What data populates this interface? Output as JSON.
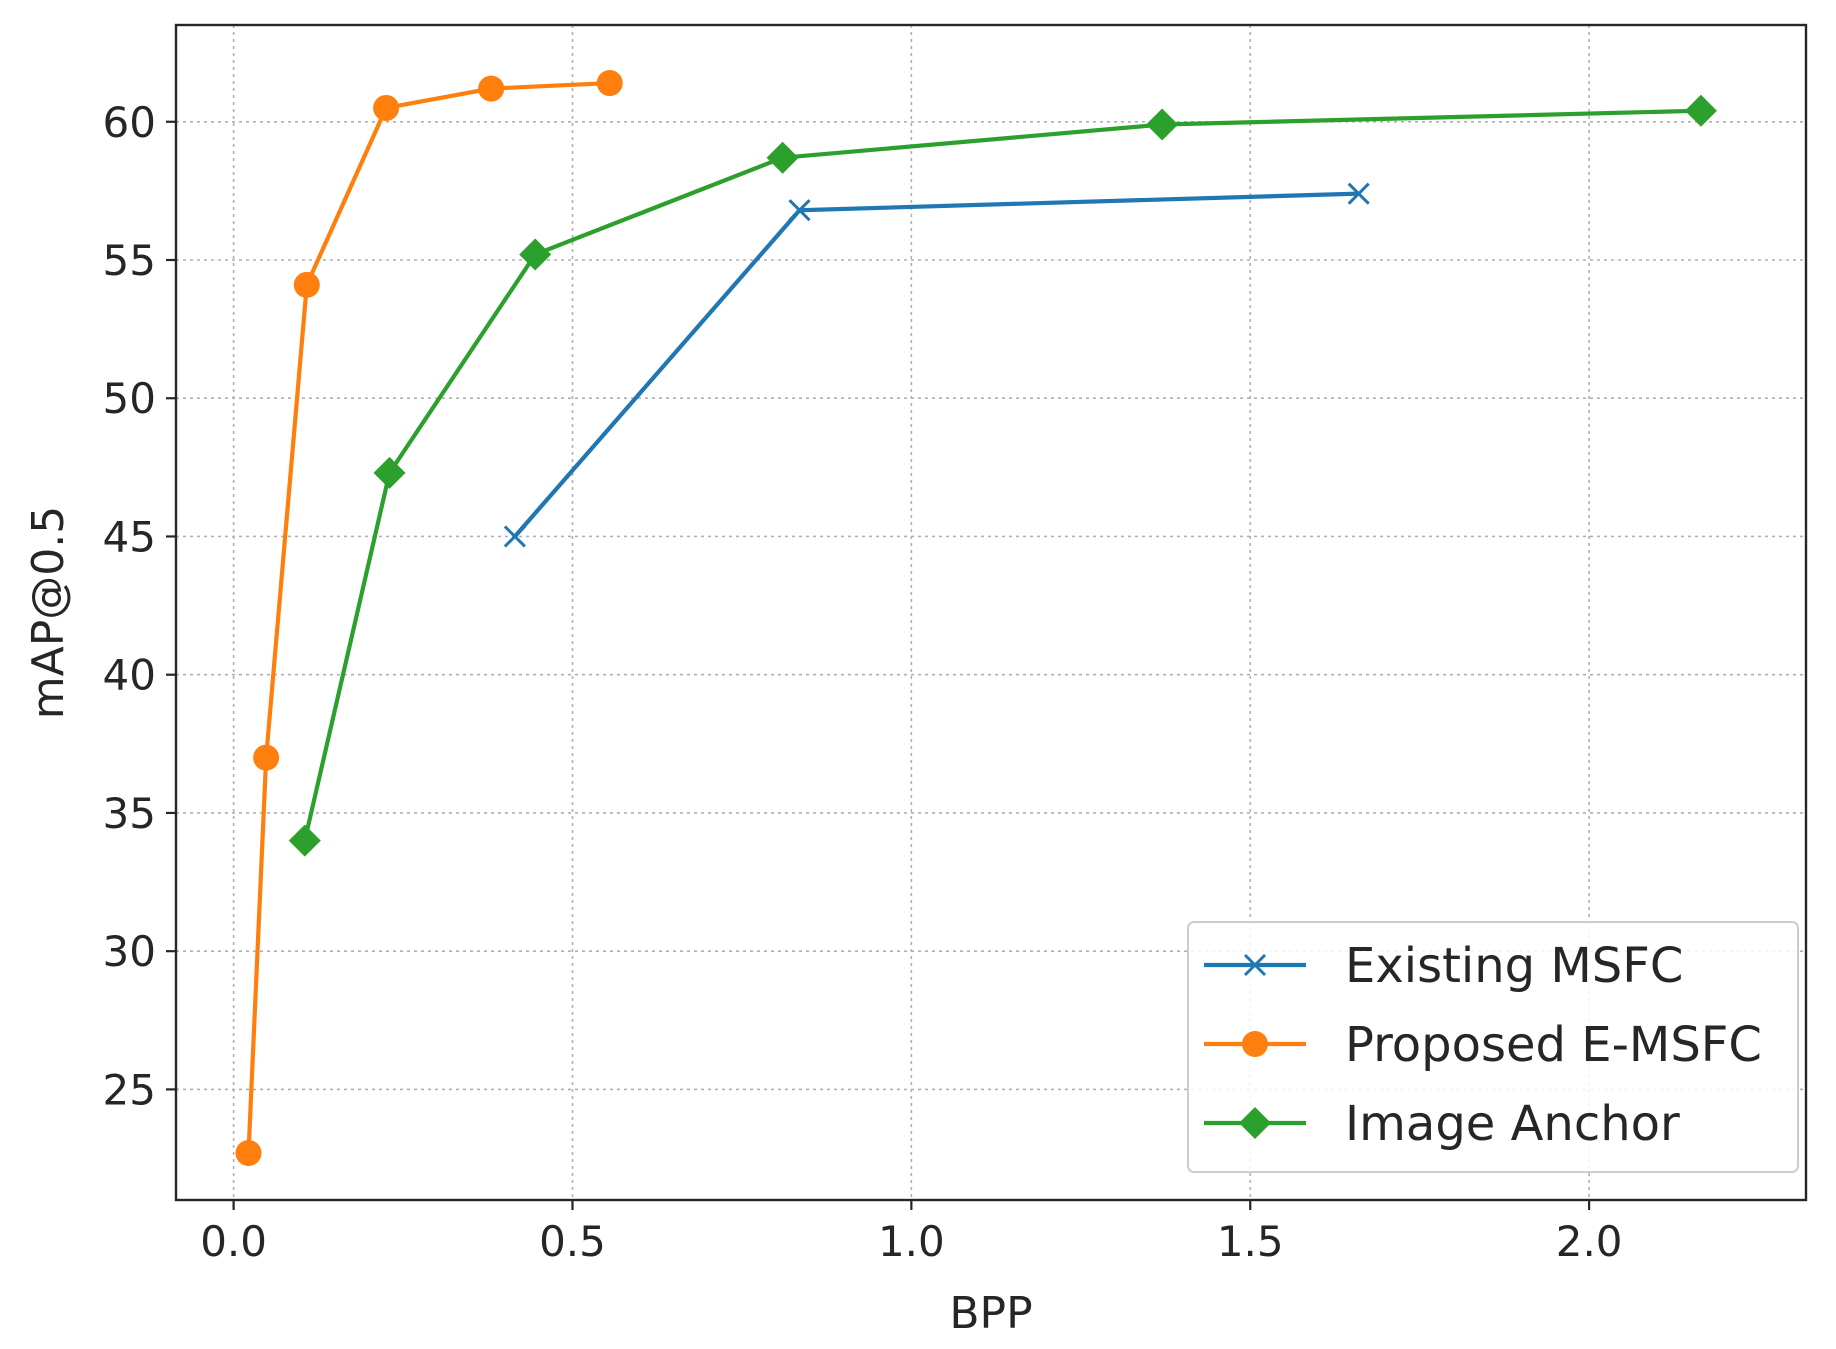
{
  "chart_data": {
    "type": "line",
    "xlabel": "BPP",
    "ylabel": "mAP@0.5",
    "xlim": [
      -0.085,
      2.32
    ],
    "ylim": [
      21.0,
      63.5
    ],
    "xticks": [
      0.0,
      0.5,
      1.0,
      1.5,
      2.0
    ],
    "xtick_labels": [
      "0.0",
      "0.5",
      "1.0",
      "1.5",
      "2.0"
    ],
    "yticks": [
      25,
      30,
      35,
      40,
      45,
      50,
      55,
      60
    ],
    "ytick_labels": [
      "25",
      "30",
      "35",
      "40",
      "45",
      "50",
      "55",
      "60"
    ],
    "grid": true,
    "legend_position": "lower-right",
    "series": [
      {
        "name": "Existing MSFC",
        "color": "#1f77b4",
        "marker": "x",
        "x": [
          0.415,
          0.835,
          1.66
        ],
        "y": [
          45.0,
          56.8,
          57.4
        ]
      },
      {
        "name": "Proposed E-MSFC",
        "color": "#ff7f0e",
        "marker": "circle",
        "x": [
          0.022,
          0.048,
          0.108,
          0.225,
          0.38,
          0.555
        ],
        "y": [
          22.7,
          37.0,
          54.1,
          60.5,
          61.2,
          61.4
        ]
      },
      {
        "name": "Image Anchor",
        "color": "#2ca02c",
        "marker": "diamond",
        "x": [
          0.105,
          0.23,
          0.445,
          0.81,
          1.37,
          2.165
        ],
        "y": [
          34.0,
          47.3,
          55.2,
          58.7,
          59.9,
          60.4
        ]
      }
    ]
  }
}
